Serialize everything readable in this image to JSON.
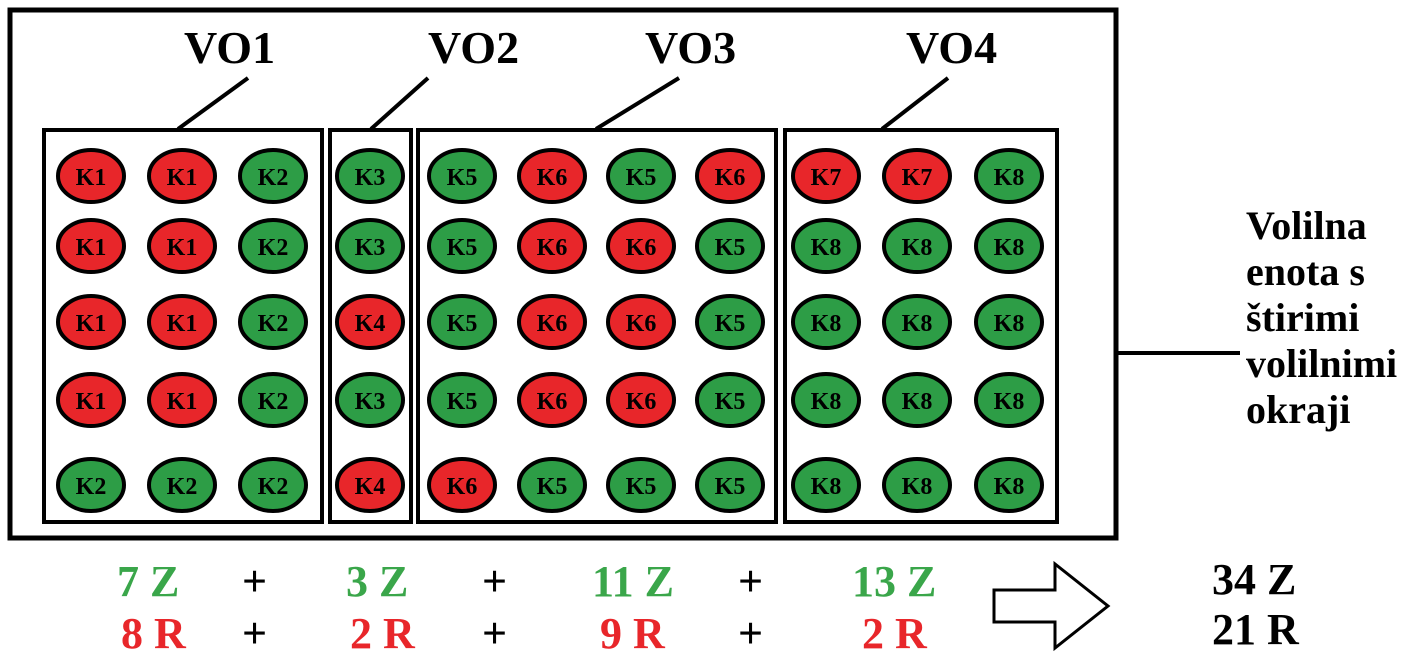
{
  "colors": {
    "red": "#e8262a",
    "green": "#2d9d46",
    "green_text": "#3aa64a",
    "red_text": "#e8262a",
    "outline": "#000000"
  },
  "districts": [
    {
      "label": "VO1",
      "grid": [
        [
          [
            "K1",
            "red"
          ],
          [
            "K1",
            "red"
          ],
          [
            "K2",
            "green"
          ]
        ],
        [
          [
            "K1",
            "red"
          ],
          [
            "K1",
            "red"
          ],
          [
            "K2",
            "green"
          ]
        ],
        [
          [
            "K1",
            "red"
          ],
          [
            "K1",
            "red"
          ],
          [
            "K2",
            "green"
          ]
        ],
        [
          [
            "K1",
            "red"
          ],
          [
            "K1",
            "red"
          ],
          [
            "K2",
            "green"
          ]
        ],
        [
          [
            "K2",
            "green"
          ],
          [
            "K2",
            "green"
          ],
          [
            "K2",
            "green"
          ]
        ]
      ],
      "green_tally": "7 Z",
      "red_tally": "8 R"
    },
    {
      "label": "VO2",
      "grid": [
        [
          [
            "K3",
            "green"
          ]
        ],
        [
          [
            "K3",
            "green"
          ]
        ],
        [
          [
            "K4",
            "red"
          ]
        ],
        [
          [
            "K3",
            "green"
          ]
        ],
        [
          [
            "K4",
            "red"
          ]
        ]
      ],
      "green_tally": "3 Z",
      "red_tally": "2 R"
    },
    {
      "label": "VO3",
      "grid": [
        [
          [
            "K5",
            "green"
          ],
          [
            "K6",
            "red"
          ],
          [
            "K5",
            "green"
          ],
          [
            "K6",
            "red"
          ]
        ],
        [
          [
            "K5",
            "green"
          ],
          [
            "K6",
            "red"
          ],
          [
            "K6",
            "red"
          ],
          [
            "K5",
            "green"
          ]
        ],
        [
          [
            "K5",
            "green"
          ],
          [
            "K6",
            "red"
          ],
          [
            "K6",
            "red"
          ],
          [
            "K5",
            "green"
          ]
        ],
        [
          [
            "K5",
            "green"
          ],
          [
            "K6",
            "red"
          ],
          [
            "K6",
            "red"
          ],
          [
            "K5",
            "green"
          ]
        ],
        [
          [
            "K6",
            "red"
          ],
          [
            "K5",
            "green"
          ],
          [
            "K5",
            "green"
          ],
          [
            "K5",
            "green"
          ]
        ]
      ],
      "green_tally": "11 Z",
      "red_tally": "9 R"
    },
    {
      "label": "VO4",
      "grid": [
        [
          [
            "K7",
            "red"
          ],
          [
            "K7",
            "red"
          ],
          [
            "K8",
            "green"
          ]
        ],
        [
          [
            "K8",
            "green"
          ],
          [
            "K8",
            "green"
          ],
          [
            "K8",
            "green"
          ]
        ],
        [
          [
            "K8",
            "green"
          ],
          [
            "K8",
            "green"
          ],
          [
            "K8",
            "green"
          ]
        ],
        [
          [
            "K8",
            "green"
          ],
          [
            "K8",
            "green"
          ],
          [
            "K8",
            "green"
          ]
        ],
        [
          [
            "K8",
            "green"
          ],
          [
            "K8",
            "green"
          ],
          [
            "K8",
            "green"
          ]
        ]
      ],
      "green_tally": "13 Z",
      "red_tally": "2 R"
    }
  ],
  "operators": {
    "plus": "+"
  },
  "unit_label": [
    "Volilna",
    "enota s",
    "štirimi",
    "volilnimi",
    "okraji"
  ],
  "totals": {
    "green": "34 Z",
    "red": "21 R"
  },
  "arrow_icon": "right-arrow-icon"
}
